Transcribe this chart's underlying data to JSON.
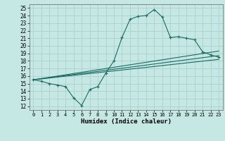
{
  "title": "",
  "xlabel": "Humidex (Indice chaleur)",
  "bg_color": "#c5e8e5",
  "grid_color": "#aacfcc",
  "line_color": "#1a6b60",
  "xlim": [
    -0.5,
    23.5
  ],
  "ylim": [
    11.5,
    25.5
  ],
  "xticks": [
    0,
    1,
    2,
    3,
    4,
    5,
    6,
    7,
    8,
    9,
    10,
    11,
    12,
    13,
    14,
    15,
    16,
    17,
    18,
    19,
    20,
    21,
    22,
    23
  ],
  "yticks": [
    12,
    13,
    14,
    15,
    16,
    17,
    18,
    19,
    20,
    21,
    22,
    23,
    24,
    25
  ],
  "curve_x": [
    0,
    1,
    2,
    3,
    4,
    5,
    6,
    7,
    8,
    9,
    10,
    11,
    12,
    13,
    14,
    15,
    16,
    17,
    18,
    19,
    20,
    21,
    22,
    23
  ],
  "curve_y": [
    15.5,
    15.3,
    15.0,
    14.8,
    14.6,
    13.1,
    12.1,
    14.2,
    14.6,
    16.4,
    18.0,
    21.1,
    23.5,
    23.9,
    24.0,
    24.8,
    23.8,
    21.1,
    21.2,
    21.0,
    20.8,
    19.2,
    18.8,
    18.5
  ],
  "line1_x": [
    0,
    23
  ],
  "line1_y": [
    15.5,
    18.2
  ],
  "line2_x": [
    0,
    23
  ],
  "line2_y": [
    15.5,
    18.7
  ],
  "line3_x": [
    0,
    23
  ],
  "line3_y": [
    15.5,
    19.3
  ]
}
